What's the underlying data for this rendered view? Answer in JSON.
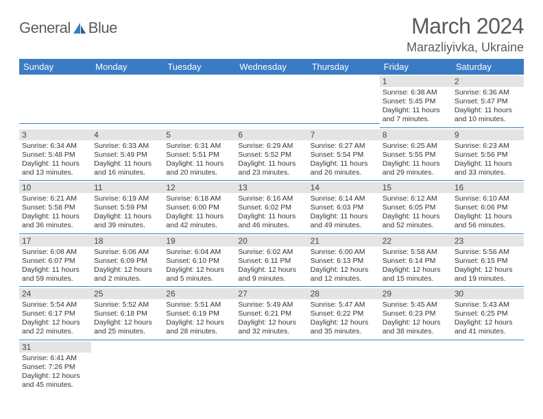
{
  "brand": {
    "part1": "General",
    "part2": "Blue"
  },
  "title": "March 2024",
  "location": "Marazliyivka, Ukraine",
  "colors": {
    "header_bg": "#3b7bc4",
    "header_text": "#ffffff",
    "daynum_bg": "#e4e4e4",
    "row_divider": "#3b7bc4",
    "body_text": "#333333",
    "title_text": "#5a5a5a"
  },
  "weekdays": [
    "Sunday",
    "Monday",
    "Tuesday",
    "Wednesday",
    "Thursday",
    "Friday",
    "Saturday"
  ],
  "weeks": [
    [
      null,
      null,
      null,
      null,
      null,
      {
        "d": "1",
        "sr": "Sunrise: 6:38 AM",
        "ss": "Sunset: 5:45 PM",
        "dl1": "Daylight: 11 hours",
        "dl2": "and 7 minutes."
      },
      {
        "d": "2",
        "sr": "Sunrise: 6:36 AM",
        "ss": "Sunset: 5:47 PM",
        "dl1": "Daylight: 11 hours",
        "dl2": "and 10 minutes."
      }
    ],
    [
      {
        "d": "3",
        "sr": "Sunrise: 6:34 AM",
        "ss": "Sunset: 5:48 PM",
        "dl1": "Daylight: 11 hours",
        "dl2": "and 13 minutes."
      },
      {
        "d": "4",
        "sr": "Sunrise: 6:33 AM",
        "ss": "Sunset: 5:49 PM",
        "dl1": "Daylight: 11 hours",
        "dl2": "and 16 minutes."
      },
      {
        "d": "5",
        "sr": "Sunrise: 6:31 AM",
        "ss": "Sunset: 5:51 PM",
        "dl1": "Daylight: 11 hours",
        "dl2": "and 20 minutes."
      },
      {
        "d": "6",
        "sr": "Sunrise: 6:29 AM",
        "ss": "Sunset: 5:52 PM",
        "dl1": "Daylight: 11 hours",
        "dl2": "and 23 minutes."
      },
      {
        "d": "7",
        "sr": "Sunrise: 6:27 AM",
        "ss": "Sunset: 5:54 PM",
        "dl1": "Daylight: 11 hours",
        "dl2": "and 26 minutes."
      },
      {
        "d": "8",
        "sr": "Sunrise: 6:25 AM",
        "ss": "Sunset: 5:55 PM",
        "dl1": "Daylight: 11 hours",
        "dl2": "and 29 minutes."
      },
      {
        "d": "9",
        "sr": "Sunrise: 6:23 AM",
        "ss": "Sunset: 5:56 PM",
        "dl1": "Daylight: 11 hours",
        "dl2": "and 33 minutes."
      }
    ],
    [
      {
        "d": "10",
        "sr": "Sunrise: 6:21 AM",
        "ss": "Sunset: 5:58 PM",
        "dl1": "Daylight: 11 hours",
        "dl2": "and 36 minutes."
      },
      {
        "d": "11",
        "sr": "Sunrise: 6:19 AM",
        "ss": "Sunset: 5:59 PM",
        "dl1": "Daylight: 11 hours",
        "dl2": "and 39 minutes."
      },
      {
        "d": "12",
        "sr": "Sunrise: 6:18 AM",
        "ss": "Sunset: 6:00 PM",
        "dl1": "Daylight: 11 hours",
        "dl2": "and 42 minutes."
      },
      {
        "d": "13",
        "sr": "Sunrise: 6:16 AM",
        "ss": "Sunset: 6:02 PM",
        "dl1": "Daylight: 11 hours",
        "dl2": "and 46 minutes."
      },
      {
        "d": "14",
        "sr": "Sunrise: 6:14 AM",
        "ss": "Sunset: 6:03 PM",
        "dl1": "Daylight: 11 hours",
        "dl2": "and 49 minutes."
      },
      {
        "d": "15",
        "sr": "Sunrise: 6:12 AM",
        "ss": "Sunset: 6:05 PM",
        "dl1": "Daylight: 11 hours",
        "dl2": "and 52 minutes."
      },
      {
        "d": "16",
        "sr": "Sunrise: 6:10 AM",
        "ss": "Sunset: 6:06 PM",
        "dl1": "Daylight: 11 hours",
        "dl2": "and 56 minutes."
      }
    ],
    [
      {
        "d": "17",
        "sr": "Sunrise: 6:08 AM",
        "ss": "Sunset: 6:07 PM",
        "dl1": "Daylight: 11 hours",
        "dl2": "and 59 minutes."
      },
      {
        "d": "18",
        "sr": "Sunrise: 6:06 AM",
        "ss": "Sunset: 6:09 PM",
        "dl1": "Daylight: 12 hours",
        "dl2": "and 2 minutes."
      },
      {
        "d": "19",
        "sr": "Sunrise: 6:04 AM",
        "ss": "Sunset: 6:10 PM",
        "dl1": "Daylight: 12 hours",
        "dl2": "and 5 minutes."
      },
      {
        "d": "20",
        "sr": "Sunrise: 6:02 AM",
        "ss": "Sunset: 6:11 PM",
        "dl1": "Daylight: 12 hours",
        "dl2": "and 9 minutes."
      },
      {
        "d": "21",
        "sr": "Sunrise: 6:00 AM",
        "ss": "Sunset: 6:13 PM",
        "dl1": "Daylight: 12 hours",
        "dl2": "and 12 minutes."
      },
      {
        "d": "22",
        "sr": "Sunrise: 5:58 AM",
        "ss": "Sunset: 6:14 PM",
        "dl1": "Daylight: 12 hours",
        "dl2": "and 15 minutes."
      },
      {
        "d": "23",
        "sr": "Sunrise: 5:56 AM",
        "ss": "Sunset: 6:15 PM",
        "dl1": "Daylight: 12 hours",
        "dl2": "and 19 minutes."
      }
    ],
    [
      {
        "d": "24",
        "sr": "Sunrise: 5:54 AM",
        "ss": "Sunset: 6:17 PM",
        "dl1": "Daylight: 12 hours",
        "dl2": "and 22 minutes."
      },
      {
        "d": "25",
        "sr": "Sunrise: 5:52 AM",
        "ss": "Sunset: 6:18 PM",
        "dl1": "Daylight: 12 hours",
        "dl2": "and 25 minutes."
      },
      {
        "d": "26",
        "sr": "Sunrise: 5:51 AM",
        "ss": "Sunset: 6:19 PM",
        "dl1": "Daylight: 12 hours",
        "dl2": "and 28 minutes."
      },
      {
        "d": "27",
        "sr": "Sunrise: 5:49 AM",
        "ss": "Sunset: 6:21 PM",
        "dl1": "Daylight: 12 hours",
        "dl2": "and 32 minutes."
      },
      {
        "d": "28",
        "sr": "Sunrise: 5:47 AM",
        "ss": "Sunset: 6:22 PM",
        "dl1": "Daylight: 12 hours",
        "dl2": "and 35 minutes."
      },
      {
        "d": "29",
        "sr": "Sunrise: 5:45 AM",
        "ss": "Sunset: 6:23 PM",
        "dl1": "Daylight: 12 hours",
        "dl2": "and 38 minutes."
      },
      {
        "d": "30",
        "sr": "Sunrise: 5:43 AM",
        "ss": "Sunset: 6:25 PM",
        "dl1": "Daylight: 12 hours",
        "dl2": "and 41 minutes."
      }
    ],
    [
      {
        "d": "31",
        "sr": "Sunrise: 6:41 AM",
        "ss": "Sunset: 7:26 PM",
        "dl1": "Daylight: 12 hours",
        "dl2": "and 45 minutes."
      },
      null,
      null,
      null,
      null,
      null,
      null
    ]
  ]
}
